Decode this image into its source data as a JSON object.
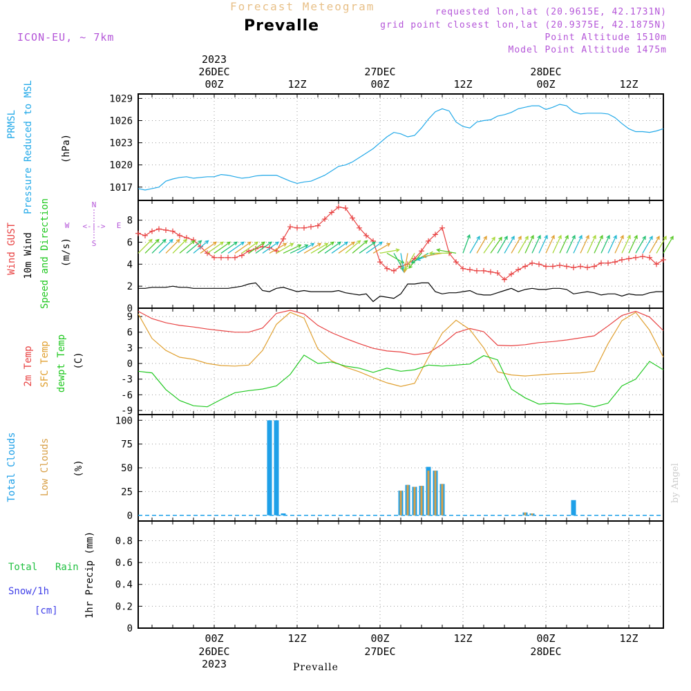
{
  "header": {
    "subtitle": "Forecast Meteogram",
    "location": "Prevalle",
    "model": "ICON-EU, ~ 7km",
    "requested": "requested lon,lat (20.9615E, 42.1731N)",
    "grid_point": "grid point closest lon,lat (20.9375E, 42.1875N)",
    "point_altitude": "Point Altitude 1510m",
    "model_altitude": "Model Point Altitude 1475m"
  },
  "footer": {
    "location": "Prevalle",
    "credit": "by Angel"
  },
  "time_axis": {
    "top_year": "2023",
    "ticks": [
      {
        "hour": 0,
        "label": "00Z",
        "date": "26DEC",
        "year": "2023"
      },
      {
        "hour": 12,
        "label": "12Z",
        "date": "",
        "year": ""
      },
      {
        "hour": 24,
        "label": "00Z",
        "date": "27DEC",
        "year": ""
      },
      {
        "hour": 36,
        "label": "12Z",
        "date": "",
        "year": ""
      },
      {
        "hour": 48,
        "label": "00Z",
        "date": "28DEC",
        "year": ""
      },
      {
        "hour": 60,
        "label": "12Z",
        "date": "",
        "year": ""
      }
    ],
    "start_hour": -11,
    "end_hour": 65
  },
  "colors": {
    "pressure": "#20a8e8",
    "gust": "#e84040",
    "wind": "#000000",
    "temp2m": "#e84040",
    "sfc_temp": "#e0a030",
    "dewpt": "#20c820",
    "total_clouds": "#1ea0e8",
    "low_clouds": "#d8a048",
    "rain": "#20c040",
    "snow": "#4040e8",
    "compass": "#b455d8"
  },
  "chart_data": [
    {
      "type": "line",
      "panel": "pressure",
      "labels": {
        "line1": "PRMSL",
        "line2": "Pressure Reduced to MSL",
        "unit": "(hPa)"
      },
      "yticks": [
        "1029",
        "1026",
        "1023",
        "1020",
        "1017"
      ],
      "ylim": [
        1015.2,
        1029.6
      ],
      "series": [
        {
          "name": "PRMSL",
          "x": [
            -11,
            -10,
            -9,
            -8,
            -7,
            -6,
            -5,
            -4,
            -3,
            -2,
            -1,
            0,
            1,
            2,
            3,
            4,
            5,
            6,
            7,
            8,
            9,
            10,
            11,
            12,
            13,
            14,
            15,
            16,
            17,
            18,
            19,
            20,
            21,
            22,
            23,
            24,
            25,
            26,
            27,
            28,
            29,
            30,
            31,
            32,
            33,
            34,
            35,
            36,
            37,
            38,
            39,
            40,
            41,
            42,
            43,
            44,
            45,
            46,
            47,
            48,
            49,
            50,
            51,
            52,
            53,
            54,
            55,
            56,
            57,
            58,
            59,
            60,
            61,
            62,
            63,
            64,
            65
          ],
          "values": [
            1016.8,
            1016.6,
            1016.8,
            1017.0,
            1017.8,
            1018.1,
            1018.3,
            1018.4,
            1018.2,
            1018.3,
            1018.4,
            1018.4,
            1018.7,
            1018.6,
            1018.4,
            1018.2,
            1018.3,
            1018.5,
            1018.6,
            1018.6,
            1018.6,
            1018.2,
            1017.8,
            1017.5,
            1017.7,
            1017.8,
            1018.2,
            1018.6,
            1019.2,
            1019.8,
            1020.0,
            1020.4,
            1021.0,
            1021.6,
            1022.2,
            1023.0,
            1023.8,
            1024.4,
            1024.2,
            1023.8,
            1024.0,
            1025.0,
            1026.2,
            1027.2,
            1027.6,
            1027.3,
            1025.8,
            1025.2,
            1025.0,
            1025.8,
            1026.0,
            1026.1,
            1026.6,
            1026.8,
            1027.1,
            1027.6,
            1027.8,
            1028.0,
            1028.0,
            1027.5,
            1027.8,
            1028.2,
            1028.0,
            1027.2,
            1026.9,
            1027.0,
            1027.0,
            1027.0,
            1026.9,
            1026.4,
            1025.6,
            1024.9,
            1024.5,
            1024.5,
            1024.4,
            1024.6,
            1024.9
          ]
        }
      ]
    },
    {
      "type": "line",
      "panel": "wind",
      "labels": {
        "gust": "Wind GUST",
        "wind": "10m Wind",
        "dir": "Speed and Direction",
        "unit": "(m/s)"
      },
      "compass": {
        "n": "N",
        "s": "S",
        "w": "W",
        "e": "E",
        "arrow": "<-|->"
      },
      "yticks": [
        "8",
        "6",
        "4",
        "2",
        "0"
      ],
      "ylim": [
        0,
        9.8
      ],
      "series": [
        {
          "name": "Wind GUST",
          "x": [
            -11,
            -10,
            -9,
            -8,
            -7,
            -6,
            -5,
            -4,
            -3,
            -2,
            -1,
            0,
            1,
            2,
            3,
            4,
            5,
            6,
            7,
            8,
            9,
            10,
            11,
            12,
            13,
            14,
            15,
            16,
            17,
            18,
            19,
            20,
            21,
            22,
            23,
            24,
            25,
            26,
            27,
            28,
            29,
            30,
            31,
            32,
            33,
            34,
            35,
            36,
            37,
            38,
            39,
            40,
            41,
            42,
            43,
            44,
            45,
            46,
            47,
            48,
            49,
            50,
            51,
            52,
            53,
            54,
            55,
            56,
            57,
            58,
            59,
            60,
            61,
            62,
            63,
            64,
            65
          ],
          "values": [
            6.8,
            6.6,
            7.0,
            7.2,
            7.1,
            7.0,
            6.6,
            6.4,
            6.2,
            5.6,
            5.0,
            4.6,
            4.6,
            4.6,
            4.6,
            4.8,
            5.2,
            5.4,
            5.6,
            5.5,
            5.2,
            6.3,
            7.4,
            7.3,
            7.3,
            7.4,
            7.5,
            8.1,
            8.7,
            9.2,
            9.1,
            8.2,
            7.3,
            6.6,
            6.1,
            4.2,
            3.6,
            3.4,
            3.8,
            4.0,
            4.5,
            5.2,
            6.1,
            6.7,
            7.3,
            5.0,
            4.2,
            3.6,
            3.5,
            3.4,
            3.4,
            3.3,
            3.2,
            2.6,
            3.1,
            3.5,
            3.8,
            4.1,
            4.0,
            3.8,
            3.8,
            3.9,
            3.8,
            3.7,
            3.8,
            3.7,
            3.8,
            4.1,
            4.1,
            4.2,
            4.4,
            4.5,
            4.6,
            4.7,
            4.6,
            4.0,
            4.4
          ]
        },
        {
          "name": "10m Wind",
          "x": [
            -11,
            -10,
            -9,
            -8,
            -7,
            -6,
            -5,
            -4,
            -3,
            -2,
            -1,
            0,
            1,
            2,
            3,
            4,
            5,
            6,
            7,
            8,
            9,
            10,
            11,
            12,
            13,
            14,
            15,
            16,
            17,
            18,
            19,
            20,
            21,
            22,
            23,
            24,
            25,
            26,
            27,
            28,
            29,
            30,
            31,
            32,
            33,
            34,
            35,
            36,
            37,
            38,
            39,
            40,
            41,
            42,
            43,
            44,
            45,
            46,
            47,
            48,
            49,
            50,
            51,
            52,
            53,
            54,
            55,
            56,
            57,
            58,
            59,
            60,
            61,
            62,
            63,
            64,
            65
          ],
          "values": [
            1.8,
            1.8,
            1.9,
            1.9,
            1.9,
            2.0,
            1.9,
            1.9,
            1.8,
            1.8,
            1.8,
            1.8,
            1.8,
            1.8,
            1.9,
            2.0,
            2.2,
            2.3,
            1.6,
            1.5,
            1.8,
            1.9,
            1.7,
            1.5,
            1.6,
            1.5,
            1.5,
            1.5,
            1.5,
            1.6,
            1.4,
            1.3,
            1.2,
            1.3,
            0.6,
            1.1,
            1.0,
            0.9,
            1.3,
            2.2,
            2.2,
            2.3,
            2.3,
            1.5,
            1.3,
            1.4,
            1.4,
            1.5,
            1.6,
            1.3,
            1.2,
            1.2,
            1.4,
            1.6,
            1.8,
            1.5,
            1.7,
            1.8,
            1.7,
            1.7,
            1.8,
            1.8,
            1.7,
            1.3,
            1.4,
            1.5,
            1.4,
            1.2,
            1.3,
            1.3,
            1.1,
            1.3,
            1.2,
            1.2,
            1.4,
            1.5,
            1.5
          ]
        },
        {
          "name": "Speed and Direction",
          "x": [
            -11,
            -10,
            -9,
            -8,
            -7,
            -6,
            -5,
            -4,
            -3,
            -2,
            -1,
            0,
            1,
            2,
            3,
            4,
            5,
            6,
            7,
            8,
            9,
            10,
            11,
            12,
            13,
            14,
            15,
            16,
            17,
            18,
            19,
            20,
            21,
            22,
            23,
            24,
            25,
            26,
            27,
            28,
            29,
            30,
            31,
            32,
            33,
            34,
            35,
            36,
            37,
            38,
            39,
            40,
            41,
            42,
            43,
            44,
            45,
            46,
            47,
            48,
            49,
            50,
            51,
            52,
            53,
            54,
            55,
            56,
            57,
            58,
            59,
            60,
            61,
            62,
            63,
            64,
            65
          ],
          "dir_deg": [
            225,
            225,
            225,
            225,
            225,
            225,
            230,
            230,
            230,
            235,
            235,
            235,
            235,
            235,
            235,
            235,
            235,
            235,
            235,
            240,
            240,
            245,
            245,
            240,
            240,
            240,
            235,
            235,
            235,
            235,
            230,
            230,
            235,
            235,
            240,
            260,
            300,
            330,
            350,
            10,
            30,
            40,
            60,
            70,
            80,
            90,
            100,
            200,
            210,
            210,
            215,
            215,
            210,
            210,
            210,
            210,
            205,
            205,
            205,
            205,
            205,
            205,
            205,
            205,
            205,
            205,
            205,
            205,
            205,
            205,
            205,
            205,
            210,
            210,
            210,
            210,
            210
          ]
        }
      ]
    },
    {
      "type": "line",
      "panel": "temperature",
      "labels": {
        "t2m": "2m Temp",
        "sfc": "SFC Temp",
        "dew": "dewpt Temp",
        "unit": "(C)"
      },
      "yticks": [
        "9",
        "6",
        "3",
        "0",
        "-3",
        "-6",
        "-9"
      ],
      "ylim": [
        -9.8,
        10.6
      ],
      "series": [
        {
          "name": "2m Temp",
          "x": [
            -11,
            -9,
            -7,
            -5,
            -3,
            -1,
            1,
            3,
            5,
            7,
            9,
            11,
            13,
            15,
            17,
            19,
            21,
            23,
            25,
            27,
            29,
            31,
            33,
            35,
            37,
            39,
            41,
            43,
            45,
            47,
            49,
            51,
            53,
            55,
            57,
            59,
            61,
            63,
            65
          ],
          "values": [
            10.0,
            8.6,
            7.8,
            7.3,
            7.0,
            6.6,
            6.3,
            6.0,
            6.0,
            6.8,
            9.6,
            10.2,
            9.5,
            7.3,
            5.9,
            4.8,
            3.8,
            2.9,
            2.4,
            2.2,
            1.7,
            2.0,
            3.7,
            5.9,
            6.7,
            6.1,
            3.5,
            3.4,
            3.6,
            4.0,
            4.2,
            4.5,
            4.9,
            5.3,
            7.2,
            9.2,
            10.0,
            8.9,
            6.3
          ]
        },
        {
          "name": "SFC Temp",
          "x": [
            -11,
            -9,
            -7,
            -5,
            -3,
            -1,
            1,
            3,
            5,
            7,
            9,
            11,
            13,
            15,
            17,
            19,
            21,
            23,
            25,
            27,
            29,
            31,
            33,
            35,
            37,
            39,
            41,
            43,
            45,
            47,
            49,
            51,
            53,
            55,
            57,
            59,
            61,
            63,
            65
          ],
          "values": [
            9.5,
            4.8,
            2.5,
            1.2,
            0.8,
            0.0,
            -0.4,
            -0.5,
            -0.3,
            2.5,
            7.5,
            9.8,
            8.7,
            2.8,
            0.5,
            -0.7,
            -1.6,
            -2.7,
            -3.7,
            -4.4,
            -3.8,
            1.2,
            5.8,
            8.3,
            6.5,
            3.0,
            -1.6,
            -2.2,
            -2.4,
            -2.2,
            -2.0,
            -1.9,
            -1.8,
            -1.5,
            3.8,
            8.2,
            9.8,
            6.4,
            1.2
          ]
        },
        {
          "name": "dewpt Temp",
          "x": [
            -11,
            -9,
            -7,
            -5,
            -3,
            -1,
            1,
            3,
            5,
            7,
            9,
            11,
            13,
            15,
            17,
            19,
            21,
            23,
            25,
            27,
            29,
            31,
            33,
            35,
            37,
            39,
            41,
            43,
            45,
            47,
            49,
            51,
            53,
            55,
            57,
            59,
            61,
            63,
            65
          ],
          "values": [
            -1.5,
            -1.8,
            -5.0,
            -7.1,
            -8.1,
            -8.3,
            -6.9,
            -5.6,
            -5.2,
            -4.9,
            -4.3,
            -2.1,
            1.6,
            0.0,
            0.3,
            -0.5,
            -0.9,
            -1.7,
            -0.9,
            -1.5,
            -1.2,
            -0.3,
            -0.5,
            -0.3,
            -0.1,
            1.5,
            0.7,
            -4.9,
            -6.6,
            -7.8,
            -7.6,
            -7.8,
            -7.7,
            -8.3,
            -7.6,
            -4.3,
            -3.0,
            0.4,
            -1.2
          ]
        }
      ]
    },
    {
      "type": "bar",
      "panel": "clouds",
      "labels": {
        "total": "Total Clouds",
        "low": "Low Clouds",
        "unit": "(%)"
      },
      "yticks": [
        "100",
        "75",
        "50",
        "25",
        "0"
      ],
      "ylim": [
        -6,
        106
      ],
      "series": [
        {
          "name": "Total Clouds",
          "x": [
            8,
            9,
            10,
            27,
            28,
            29,
            30,
            31,
            32,
            33,
            34,
            45,
            46,
            47,
            52
          ],
          "values": [
            100,
            100,
            2,
            26,
            32,
            30,
            31,
            51,
            47,
            33,
            0,
            3,
            2,
            0,
            16
          ]
        },
        {
          "name": "Low Clouds",
          "x": [
            8,
            9,
            10,
            27,
            28,
            29,
            30,
            31,
            32,
            33,
            34,
            45,
            46,
            47,
            52
          ],
          "values": [
            0,
            0,
            0,
            26,
            32,
            30,
            31,
            47,
            47,
            33,
            0,
            3,
            2,
            0,
            0
          ]
        }
      ]
    },
    {
      "type": "bar",
      "panel": "precipitation",
      "labels": {
        "total": "Total",
        "rain": "Rain",
        "snow": "Snow/1h",
        "snow_unit": "[cm]",
        "axis": "1hr Precip (mm)"
      },
      "yticks": [
        "0.8",
        "0.6",
        "0.4",
        "0.2",
        "0"
      ],
      "ylim": [
        0,
        0.98
      ],
      "series": [
        {
          "name": "Total Rain",
          "x": [],
          "values": []
        }
      ]
    }
  ]
}
